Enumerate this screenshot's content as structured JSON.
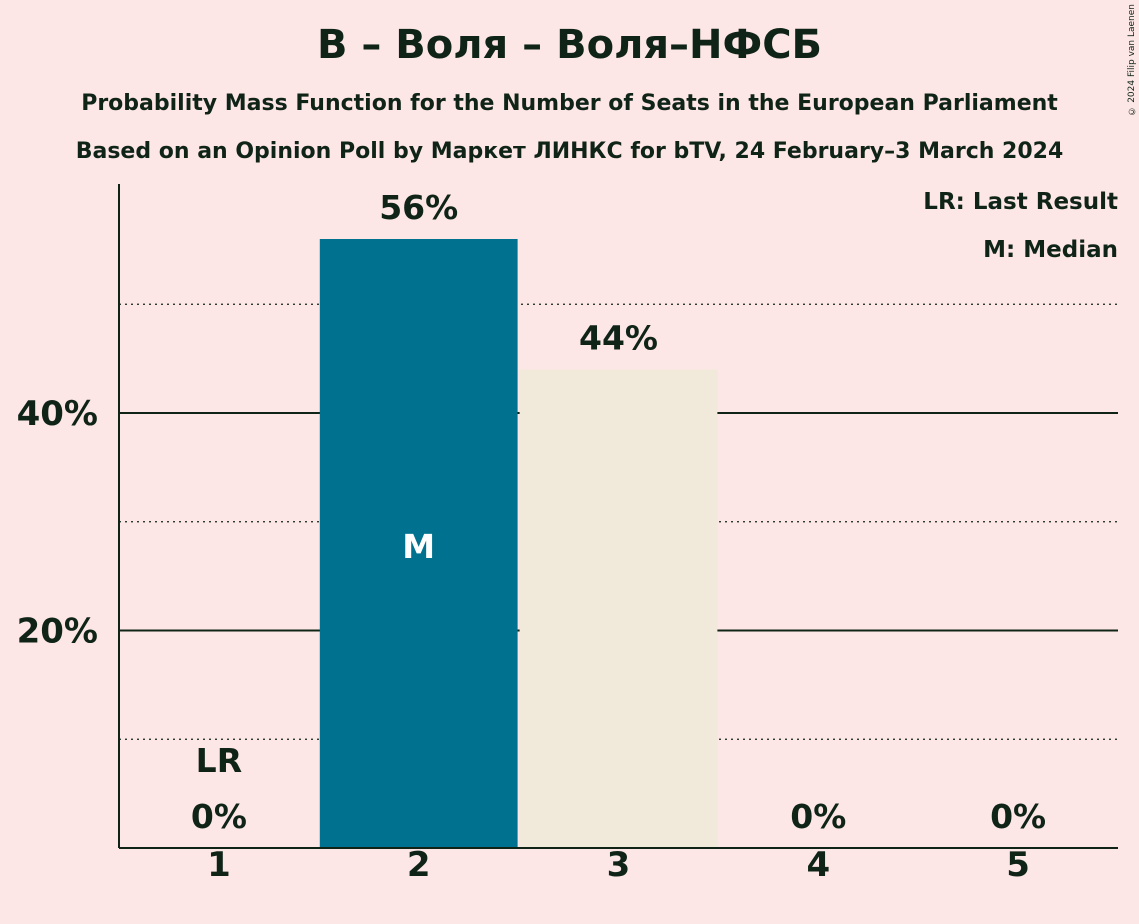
{
  "header": {
    "title": "В – Воля – Воля–НФСБ",
    "subtitle1": "Probability Mass Function for the Number of Seats in the European Parliament",
    "subtitle2": "Based on an Opinion Poll by Маркет ЛИНКС for bTV, 24 February–3 March 2024",
    "copyright": "© 2024 Filip van Laenen"
  },
  "legend": {
    "last_result": "LR: Last Result",
    "median": "M: Median"
  },
  "colors": {
    "background": "#fde6e6",
    "bar_primary": "#00728f",
    "bar_secondary": "#f1e9da",
    "text": "#0f2417"
  },
  "chart_data": {
    "type": "bar",
    "categories": [
      "1",
      "2",
      "3",
      "4",
      "5"
    ],
    "values": [
      0,
      56,
      44,
      0,
      0
    ],
    "value_labels": [
      "0%",
      "56%",
      "44%",
      "0%",
      "0%"
    ],
    "bar_styles": [
      "secondary",
      "primary",
      "secondary",
      "secondary",
      "secondary"
    ],
    "annotations": [
      {
        "category": "1",
        "text": "LR"
      },
      {
        "category": "2",
        "text": "M"
      }
    ],
    "ylim": [
      0,
      61
    ],
    "yticks": [
      {
        "value": 20,
        "label": "20%"
      },
      {
        "value": 40,
        "label": "40%"
      }
    ],
    "minor_gridlines": [
      10,
      30,
      50
    ],
    "title": "В – Воля – Воля–НФСБ",
    "xlabel": "",
    "ylabel": ""
  }
}
